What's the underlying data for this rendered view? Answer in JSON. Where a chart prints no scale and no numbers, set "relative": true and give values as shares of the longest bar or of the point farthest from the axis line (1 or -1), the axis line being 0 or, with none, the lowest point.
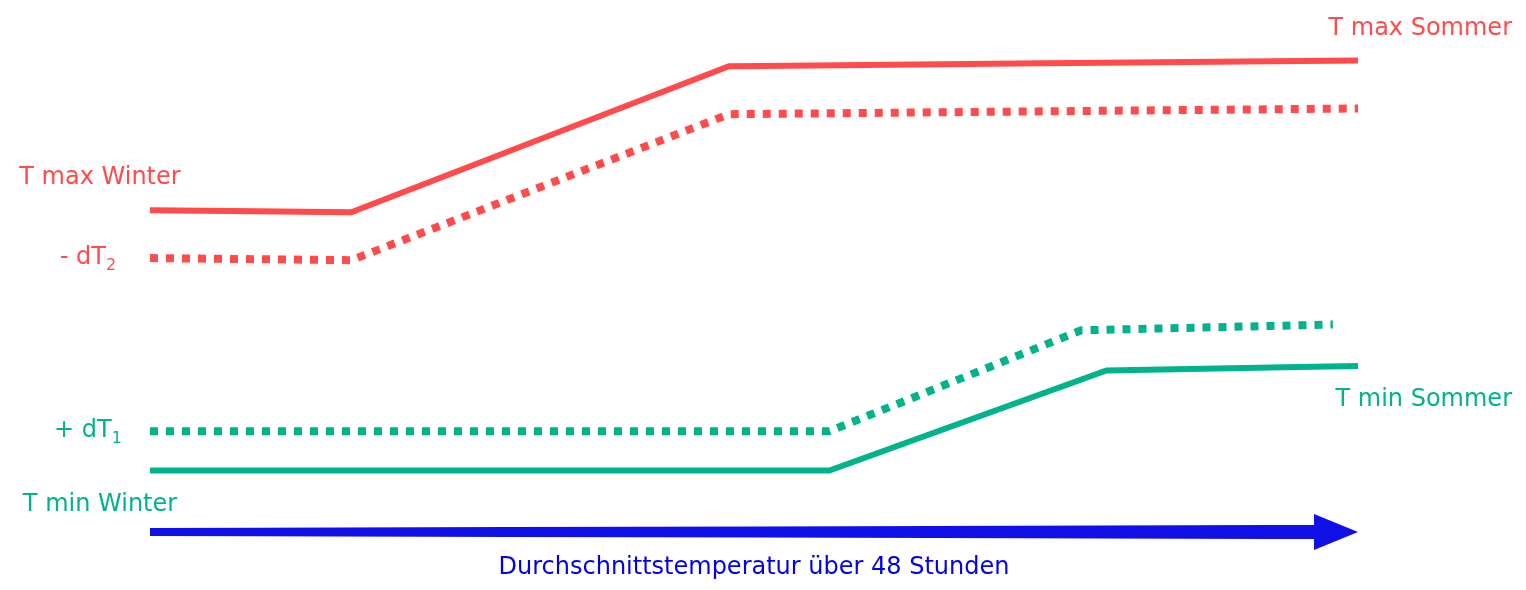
{
  "chart_data": {
    "type": "line",
    "relative": true,
    "xlabel": "Durchschnittstemperatur über 48 Stunden",
    "grid": false,
    "legend": false,
    "marker": "none",
    "categories": [
      null,
      null,
      null,
      null,
      null,
      null,
      null,
      null,
      null,
      null,
      null,
      null,
      null,
      null,
      null,
      null,
      null,
      null,
      null,
      null,
      null,
      null,
      null,
      null,
      null,
      null,
      null,
      null,
      null,
      null,
      null,
      null,
      null,
      null,
      null,
      null,
      null,
      null,
      null,
      null,
      null,
      null,
      null,
      null,
      null,
      null,
      null,
      null,
      null
    ],
    "series": [
      {
        "name": "T max Winter",
        "color": "#ff4b4b",
        "line_style": "solid",
        "values": [
          0.635,
          null,
          null,
          null,
          null,
          null,
          null,
          null,
          0.63,
          null,
          null,
          null,
          null,
          null,
          null,
          null,
          null,
          null,
          null,
          null,
          null,
          null,
          null,
          0.986,
          null,
          null,
          null,
          null,
          null,
          null,
          null,
          null,
          null,
          null,
          null,
          null,
          null,
          null,
          null,
          null,
          null,
          null,
          null,
          null,
          null,
          null,
          null,
          null,
          1
        ]
      },
      {
        "name": "- dT$_{2}$",
        "color": "#ff4b4b",
        "line_style": "dotted",
        "values": [
          0.518,
          null,
          null,
          null,
          null,
          null,
          null,
          null,
          0.513,
          null,
          null,
          null,
          null,
          null,
          null,
          null,
          null,
          null,
          null,
          null,
          null,
          null,
          null,
          0.869,
          null,
          null,
          null,
          null,
          null,
          null,
          null,
          null,
          null,
          null,
          null,
          null,
          null,
          null,
          null,
          null,
          null,
          null,
          null,
          null,
          null,
          null,
          null,
          null,
          0.883
        ]
      },
      {
        "name": "+ dT$_{1}$",
        "color": "#00b38a",
        "line_style": "dotted",
        "values": [
          0.096,
          null,
          null,
          null,
          null,
          null,
          null,
          null,
          null,
          null,
          null,
          null,
          null,
          null,
          null,
          null,
          null,
          null,
          null,
          null,
          null,
          null,
          null,
          null,
          null,
          null,
          null,
          0.096,
          null,
          null,
          null,
          null,
          null,
          null,
          null,
          null,
          null,
          0.342,
          null,
          null,
          null,
          null,
          null,
          null,
          null,
          null,
          null,
          0.356,
          null
        ]
      },
      {
        "name": "T min Winter",
        "color": "#00b38a",
        "line_style": "solid",
        "values": [
          0,
          null,
          null,
          null,
          null,
          null,
          null,
          null,
          null,
          null,
          null,
          null,
          null,
          null,
          null,
          null,
          null,
          null,
          null,
          null,
          null,
          null,
          null,
          null,
          null,
          null,
          null,
          0,
          null,
          null,
          null,
          null,
          null,
          null,
          null,
          null,
          null,
          null,
          0.244,
          null,
          null,
          null,
          null,
          null,
          null,
          null,
          null,
          null,
          0.255
        ]
      }
    ],
    "annotations": [
      "T max Sommer",
      "T min Sommer"
    ]
  }
}
